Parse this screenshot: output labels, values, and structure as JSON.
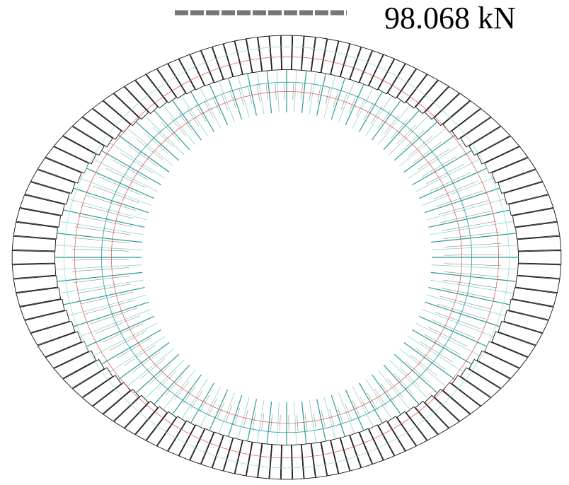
{
  "scale_bar": {
    "label": "98.068 kN",
    "color": "#777777"
  },
  "diagram": {
    "type": "radial force diagram on circular ring",
    "colors": {
      "outline": "#111111",
      "red": "#d44a4a",
      "teal": "#2a9a9a",
      "light_teal": "#8fd3d3"
    }
  }
}
